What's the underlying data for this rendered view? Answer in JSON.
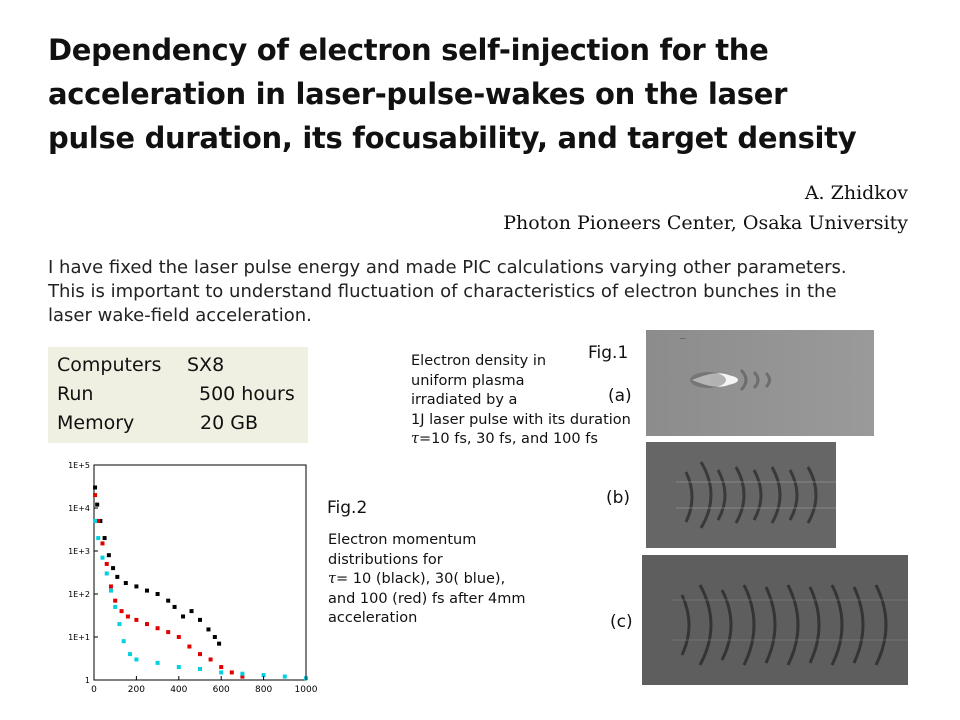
{
  "title": {
    "line1": "Dependency of electron self-injection for the",
    "line2": "acceleration in laser-pulse-wakes on the laser",
    "line3": "pulse duration, its focusability, and target density"
  },
  "author": {
    "name": "A.  Zhidkov",
    "affiliation": "Photon Pioneers Center, Osaka University"
  },
  "intro": {
    "line1": "I have fixed the laser pulse energy and made PIC calculations varying other parameters.",
    "line2": "This is important to understand fluctuation of characteristics of electron bunches in the",
    "line3": "laser wake-field acceleration."
  },
  "resources": [
    {
      "key": "Computers",
      "value": "SX8"
    },
    {
      "key": "Run",
      "value": "500 hours"
    },
    {
      "key": "Memory",
      "value": "20  GB"
    }
  ],
  "fig1": {
    "label": "Fig.1",
    "caption": [
      "Electron density in",
      "uniform plasma",
      "irradiated by a",
      "1J laser pulse with its duration"
    ],
    "caption_tau_rest": "=10 fs, 30 fs, and 100 fs",
    "panels": [
      "(a)",
      "(b)",
      "(c)"
    ],
    "colors": {
      "background": "#8a8a8a",
      "dark": "#3a3a3a",
      "bright": "#ffffff"
    }
  },
  "fig2": {
    "label": "Fig.2",
    "caption_lines": [
      "Electron momentum",
      "distributions for"
    ],
    "caption_tau_rest": "= 10 (black), 30( blue),",
    "caption_lines2": [
      "and 100 (red) fs after 4mm",
      "acceleration"
    ]
  },
  "tau_symbol": "τ",
  "chart_data": {
    "type": "scatter",
    "yscale": "log",
    "xlim": [
      0,
      1000
    ],
    "ylim": [
      1,
      100000
    ],
    "xticks": [
      "0",
      "200",
      "400",
      "600",
      "800",
      "1000"
    ],
    "yticks": [
      "1",
      "1E+1",
      "1E+2",
      "1E+3",
      "1E+4",
      "1E+5"
    ],
    "series": [
      {
        "color": "#000000",
        "points": [
          [
            5,
            30000
          ],
          [
            15,
            12000
          ],
          [
            30,
            5000
          ],
          [
            50,
            2000
          ],
          [
            70,
            800
          ],
          [
            90,
            400
          ],
          [
            110,
            250
          ],
          [
            150,
            180
          ],
          [
            200,
            150
          ],
          [
            250,
            120
          ],
          [
            300,
            100
          ],
          [
            350,
            70
          ],
          [
            380,
            50
          ],
          [
            420,
            30
          ],
          [
            460,
            40
          ],
          [
            500,
            25
          ],
          [
            540,
            15
          ],
          [
            570,
            10
          ],
          [
            590,
            7
          ]
        ]
      },
      {
        "color": "#e00000",
        "points": [
          [
            5,
            20000
          ],
          [
            20,
            5000
          ],
          [
            40,
            1500
          ],
          [
            60,
            500
          ],
          [
            80,
            150
          ],
          [
            100,
            70
          ],
          [
            130,
            40
          ],
          [
            160,
            30
          ],
          [
            200,
            25
          ],
          [
            250,
            20
          ],
          [
            300,
            16
          ],
          [
            350,
            13
          ],
          [
            400,
            10
          ],
          [
            450,
            6
          ],
          [
            500,
            4
          ],
          [
            550,
            3
          ],
          [
            600,
            2
          ],
          [
            650,
            1.5
          ],
          [
            700,
            1.2
          ]
        ]
      },
      {
        "color": "#00d0e0",
        "points": [
          [
            5,
            5000
          ],
          [
            20,
            2000
          ],
          [
            40,
            700
          ],
          [
            60,
            300
          ],
          [
            80,
            120
          ],
          [
            100,
            50
          ],
          [
            120,
            20
          ],
          [
            140,
            8
          ],
          [
            170,
            4
          ],
          [
            200,
            3
          ],
          [
            300,
            2.5
          ],
          [
            400,
            2
          ],
          [
            500,
            1.8
          ],
          [
            600,
            1.5
          ],
          [
            700,
            1.4
          ],
          [
            800,
            1.3
          ],
          [
            900,
            1.2
          ],
          [
            1000,
            1.1
          ]
        ]
      }
    ]
  }
}
